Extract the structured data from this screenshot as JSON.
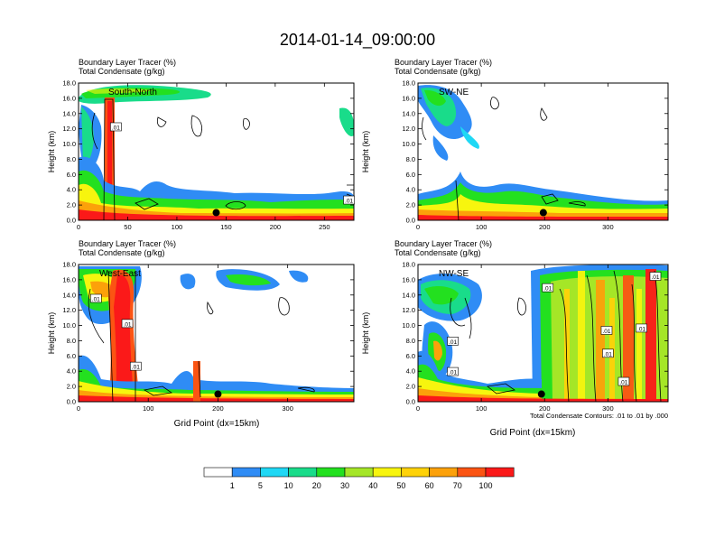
{
  "figure": {
    "title": "2014-01-14_09:00:00",
    "xlabel": "Grid Point (dx=15km)",
    "contour_note": "Total Condensate Contours: .01 to .01 by .000"
  },
  "colorbar": {
    "colors": [
      "#ffffff",
      "#2f8cf5",
      "#1fd8f5",
      "#19dc8a",
      "#23e01f",
      "#a5e627",
      "#f7f50e",
      "#fed208",
      "#fca10a",
      "#fb5413",
      "#fb1919"
    ],
    "labels": [
      "1",
      "5",
      "10",
      "20",
      "30",
      "40",
      "50",
      "60",
      "70",
      "100"
    ]
  },
  "chart_data": [
    {
      "type": "heatmap",
      "id": "south-north",
      "label": "South-North",
      "header_line1": "Boundary Layer Tracer   (%)",
      "header_line2": "Total Condensate   (g/kg)",
      "ylabel": "Height (km)",
      "xlabel": "",
      "xlim": [
        0,
        280
      ],
      "ylim": [
        0,
        18
      ],
      "xticks": [
        "0",
        "50",
        "100",
        "150",
        "200",
        "250"
      ],
      "xtick_values": [
        0,
        50,
        100,
        150,
        200,
        250
      ],
      "yticks": [
        "0.0",
        "2.0",
        "4.0",
        "6.0",
        "8.0",
        "10.0",
        "12.0",
        "14.0",
        "16.0",
        "18.0"
      ],
      "ytick_values": [
        0,
        2,
        4,
        6,
        8,
        10,
        12,
        14,
        16,
        18
      ],
      "marker": [
        140,
        1
      ],
      "contour_labels": [
        {
          "text": ".01",
          "x": 38,
          "y": 12.2
        },
        {
          "text": ".01",
          "x": 275,
          "y": 2.6
        }
      ]
    },
    {
      "type": "heatmap",
      "id": "sw-ne",
      "label": "SW-NE",
      "header_line1": "Boundary Layer Tracer   (%)",
      "header_line2": "Total Condensate   (g/kg)",
      "ylabel": "Height (km)",
      "xlabel": "",
      "xlim": [
        0,
        395
      ],
      "ylim": [
        0,
        18
      ],
      "xticks": [
        "0",
        "100",
        "200",
        "300"
      ],
      "xtick_values": [
        0,
        100,
        200,
        300
      ],
      "yticks": [
        "0.0",
        "2.0",
        "4.0",
        "6.0",
        "8.0",
        "10.0",
        "12.0",
        "14.0",
        "16.0",
        "18.0"
      ],
      "ytick_values": [
        0,
        2,
        4,
        6,
        8,
        10,
        12,
        14,
        16,
        18
      ],
      "marker": [
        198,
        1
      ],
      "contour_labels": []
    },
    {
      "type": "heatmap",
      "id": "west-east",
      "label": "West-East",
      "header_line1": "Boundary Layer Tracer   (%)",
      "header_line2": "Total Condensate   (g/kg)",
      "ylabel": "Height (km)",
      "xlabel": "Grid Point (dx=15km)",
      "xlim": [
        0,
        395
      ],
      "ylim": [
        0,
        18
      ],
      "xticks": [
        "0",
        "100",
        "200",
        "300"
      ],
      "xtick_values": [
        0,
        100,
        200,
        300
      ],
      "yticks": [
        "0.0",
        "2.0",
        "4.0",
        "6.0",
        "8.0",
        "10.0",
        "12.0",
        "14.0",
        "16.0",
        "18.0"
      ],
      "ytick_values": [
        0,
        2,
        4,
        6,
        8,
        10,
        12,
        14,
        16,
        18
      ],
      "marker": [
        200,
        1
      ],
      "contour_labels": [
        {
          "text": ".01",
          "x": 25,
          "y": 13.5
        },
        {
          "text": ".01",
          "x": 70,
          "y": 10.2
        },
        {
          "text": ".01",
          "x": 82,
          "y": 4.6
        }
      ]
    },
    {
      "type": "heatmap",
      "id": "nw-se",
      "label": "NW-SE",
      "header_line1": "Boundary Layer Tracer   (%)",
      "header_line2": "Total Condensate   (g/kg)",
      "ylabel": "Height (km)",
      "xlabel": "Grid Point (dx=15km)",
      "xlim": [
        0,
        395
      ],
      "ylim": [
        0,
        18
      ],
      "xticks": [
        "0",
        "100",
        "200",
        "300"
      ],
      "xtick_values": [
        0,
        100,
        200,
        300
      ],
      "yticks": [
        "0.0",
        "2.0",
        "4.0",
        "6.0",
        "8.0",
        "10.0",
        "12.0",
        "14.0",
        "16.0",
        "18.0"
      ],
      "ytick_values": [
        0,
        2,
        4,
        6,
        8,
        10,
        12,
        14,
        16,
        18
      ],
      "marker": [
        195,
        1
      ],
      "contour_labels": [
        {
          "text": ".01",
          "x": 205,
          "y": 14.9
        },
        {
          "text": ".01",
          "x": 375,
          "y": 16.4
        },
        {
          "text": ".01",
          "x": 298,
          "y": 9.3
        },
        {
          "text": ".01",
          "x": 353,
          "y": 9.6
        },
        {
          "text": ".01",
          "x": 55,
          "y": 7.9
        },
        {
          "text": ".01",
          "x": 300,
          "y": 6.3
        },
        {
          "text": ".01",
          "x": 55,
          "y": 3.9
        },
        {
          "text": ".01",
          "x": 325,
          "y": 2.6
        }
      ]
    }
  ]
}
